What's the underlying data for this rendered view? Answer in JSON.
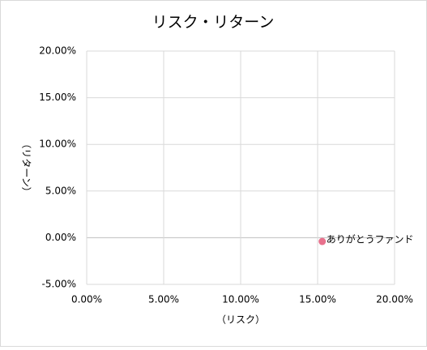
{
  "chart_data": {
    "type": "scatter",
    "title": "リスク・リターン",
    "x_label": "（リスク）",
    "y_label": "（リターン）",
    "series": [
      {
        "name": "ありがとうファンド",
        "color": "#e8718d",
        "x": [
          15.3
        ],
        "values": [
          -0.4
        ]
      }
    ],
    "xlim": [
      0,
      20
    ],
    "xticks": [
      {
        "value": 0,
        "label": "0.00%"
      },
      {
        "value": 5,
        "label": "5.00%"
      },
      {
        "value": 10,
        "label": "10.00%"
      },
      {
        "value": 15,
        "label": "15.00%"
      },
      {
        "value": 20,
        "label": "20.00%"
      }
    ],
    "ylim": [
      -5,
      20
    ],
    "yticks": [
      {
        "value": -5,
        "label": "-5.00%"
      },
      {
        "value": 0,
        "label": "0.00%"
      },
      {
        "value": 5,
        "label": "5.00%"
      },
      {
        "value": 10,
        "label": "10.00%"
      },
      {
        "value": 15,
        "label": "15.00%"
      },
      {
        "value": 20,
        "label": "20.00%"
      }
    ],
    "grid": true
  }
}
